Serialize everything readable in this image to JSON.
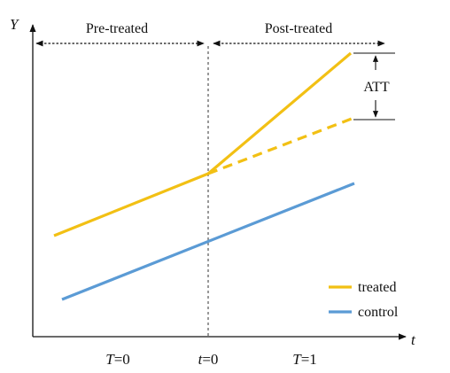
{
  "axes": {
    "y_label": "Y",
    "x_label": "t"
  },
  "periods": {
    "pre_label": "Pre-treated",
    "post_label": "Post-treated"
  },
  "x_ticks": [
    {
      "var": "T",
      "eq": "=0"
    },
    {
      "var": "t",
      "eq": "=0"
    },
    {
      "var": "T",
      "eq": "=1"
    }
  ],
  "att_label": "ATT",
  "legend": {
    "treated": "treated",
    "control": "control"
  },
  "colors": {
    "treated": "#f2c014",
    "control": "#5b9bd5",
    "axis": "#111111"
  }
}
